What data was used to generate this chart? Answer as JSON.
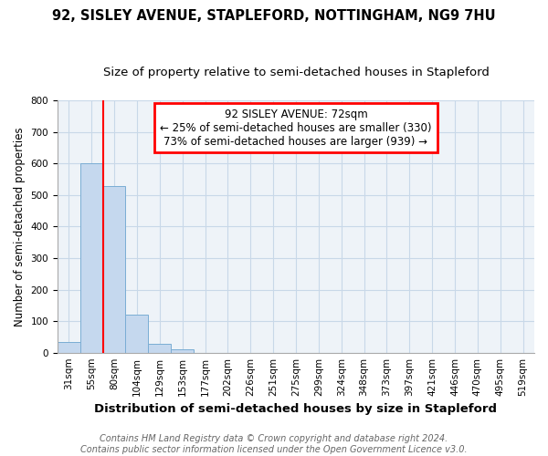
{
  "title": "92, SISLEY AVENUE, STAPLEFORD, NOTTINGHAM, NG9 7HU",
  "subtitle": "Size of property relative to semi-detached houses in Stapleford",
  "xlabel": "Distribution of semi-detached houses by size in Stapleford",
  "ylabel": "Number of semi-detached properties",
  "footer_line1": "Contains HM Land Registry data © Crown copyright and database right 2024.",
  "footer_line2": "Contains public sector information licensed under the Open Government Licence v3.0.",
  "categories": [
    "31sqm",
    "55sqm",
    "80sqm",
    "104sqm",
    "129sqm",
    "153sqm",
    "177sqm",
    "202sqm",
    "226sqm",
    "251sqm",
    "275sqm",
    "299sqm",
    "324sqm",
    "348sqm",
    "373sqm",
    "397sqm",
    "421sqm",
    "446sqm",
    "470sqm",
    "495sqm",
    "519sqm"
  ],
  "values": [
    35,
    600,
    530,
    120,
    27,
    10,
    0,
    0,
    0,
    0,
    0,
    0,
    0,
    0,
    0,
    0,
    0,
    0,
    0,
    0,
    0
  ],
  "bar_color": "#c5d8ee",
  "bar_edge_color": "#7aadd4",
  "grid_color": "#c8d8e8",
  "background_color": "#eef3f8",
  "annotation_text": "92 SISLEY AVENUE: 72sqm\n← 25% of semi-detached houses are smaller (330)\n73% of semi-detached houses are larger (939) →",
  "annotation_box_color": "white",
  "annotation_box_edge_color": "red",
  "vline_color": "red",
  "vline_position": 1.5,
  "ylim": [
    0,
    800
  ],
  "yticks": [
    0,
    100,
    200,
    300,
    400,
    500,
    600,
    700,
    800
  ],
  "title_fontsize": 10.5,
  "subtitle_fontsize": 9.5,
  "xlabel_fontsize": 9.5,
  "ylabel_fontsize": 8.5,
  "tick_fontsize": 7.5,
  "annotation_fontsize": 8.5,
  "footer_fontsize": 7
}
